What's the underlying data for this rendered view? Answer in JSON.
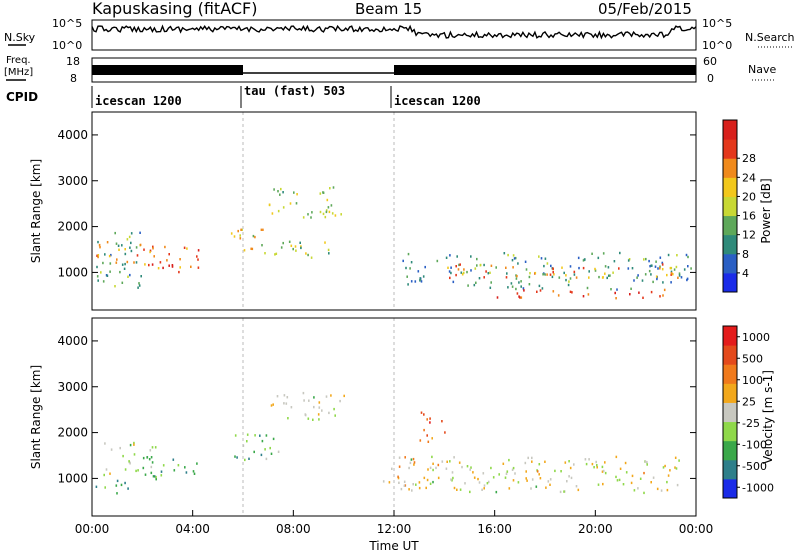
{
  "header": {
    "radar": "Kapuskasing (fitACF)",
    "beam": "Beam 15",
    "date": "05/Feb/2015"
  },
  "noise_panel": {
    "left_label": "N.Sky",
    "right_label": "N.Search",
    "tick_top": "10^5",
    "tick_bottom": "10^0"
  },
  "freq_panel": {
    "left_label_1": "Freq.",
    "left_label_2": "[MHz]",
    "left_tick_top": "18",
    "left_tick_bottom": "8",
    "right_label": "Nave",
    "right_tick_top": "60",
    "right_tick_bottom": "0"
  },
  "cpid": {
    "label": "CPID",
    "segments": [
      {
        "name": "icescan 1200",
        "start_h": 0,
        "end_h": 6
      },
      {
        "name": "tau (fast) 503",
        "start_h": 6,
        "end_h": 12
      },
      {
        "name": "icescan 1200",
        "start_h": 12,
        "end_h": 24
      }
    ]
  },
  "x_axis": {
    "label": "Time UT",
    "range_h": [
      0,
      24
    ],
    "ticks": [
      "00:00",
      "04:00",
      "08:00",
      "12:00",
      "16:00",
      "20:00",
      "00:00"
    ]
  },
  "chart_data": [
    {
      "type": "heatmap",
      "title": "Power",
      "ylabel": "Slant Range [km]",
      "ylim": [
        180,
        4500
      ],
      "yticks": [
        "1000",
        "2000",
        "3000",
        "4000"
      ],
      "colorbar_label": "Power [dB]",
      "colorbar_ticks": [
        "4",
        "8",
        "12",
        "16",
        "20",
        "24",
        "28"
      ],
      "colorbar_colors": [
        "#1a2be8",
        "#2a5fc4",
        "#2f8a7a",
        "#5ea85a",
        "#c8d834",
        "#f2c81c",
        "#f08a1c",
        "#e4381c",
        "#d8201c"
      ],
      "regions": [
        {
          "t0": 0.1,
          "t1": 2.0,
          "r0": 650,
          "r1": 1900,
          "level": 0.35
        },
        {
          "t0": 0.1,
          "t1": 2.5,
          "r0": 1200,
          "r1": 1700,
          "level": 0.75
        },
        {
          "t0": 2.0,
          "t1": 4.3,
          "r0": 1000,
          "r1": 1600,
          "level": 0.8
        },
        {
          "t0": 5.5,
          "t1": 7.0,
          "r0": 1450,
          "r1": 2000,
          "level": 0.55
        },
        {
          "t0": 6.5,
          "t1": 9.5,
          "r0": 1300,
          "r1": 1700,
          "level": 0.45
        },
        {
          "t0": 7.0,
          "t1": 10.0,
          "r0": 2200,
          "r1": 2900,
          "level": 0.5
        },
        {
          "t0": 12.3,
          "t1": 23.8,
          "r0": 650,
          "r1": 1450,
          "level": 0.3
        },
        {
          "t0": 14.0,
          "t1": 23.5,
          "r0": 900,
          "r1": 1200,
          "level": 0.7
        },
        {
          "t0": 16.0,
          "t1": 23.0,
          "r0": 450,
          "r1": 650,
          "level": 0.85
        }
      ]
    },
    {
      "type": "heatmap",
      "title": "Velocity",
      "ylabel": "Slant Range [km]",
      "ylim": [
        180,
        4500
      ],
      "yticks": [
        "1000",
        "2000",
        "3000",
        "4000"
      ],
      "colorbar_label": "Velocity [m s-1]",
      "colorbar_ticks": [
        "1000",
        "500",
        "100",
        "25",
        "-25",
        "-100",
        "-500",
        "-1000"
      ],
      "colorbar_colors": [
        "#1a2be8",
        "#2e7f8a",
        "#3aa84a",
        "#8fd84a",
        "#c8c8c0",
        "#f2a81c",
        "#f07a1c",
        "#e44a1c",
        "#e41c1c"
      ],
      "regions": [
        {
          "t0": 0.1,
          "t1": 1.5,
          "r0": 650,
          "r1": 1000,
          "level": 0.3
        },
        {
          "t0": 0.3,
          "t1": 2.5,
          "r0": 1100,
          "r1": 1800,
          "level": 0.42
        },
        {
          "t0": 2.0,
          "t1": 4.3,
          "r0": 1000,
          "r1": 1500,
          "level": 0.25
        },
        {
          "t0": 5.5,
          "t1": 7.5,
          "r0": 1400,
          "r1": 2000,
          "level": 0.3
        },
        {
          "t0": 7.0,
          "t1": 10.0,
          "r0": 2300,
          "r1": 2900,
          "level": 0.5
        },
        {
          "t0": 11.5,
          "t1": 12.8,
          "r0": 650,
          "r1": 1500,
          "level": 0.62
        },
        {
          "t0": 12.5,
          "t1": 23.5,
          "r0": 700,
          "r1": 1500,
          "level": 0.5
        },
        {
          "t0": 13.0,
          "t1": 14.0,
          "r0": 1800,
          "r1": 2500,
          "level": 0.75
        }
      ]
    }
  ]
}
